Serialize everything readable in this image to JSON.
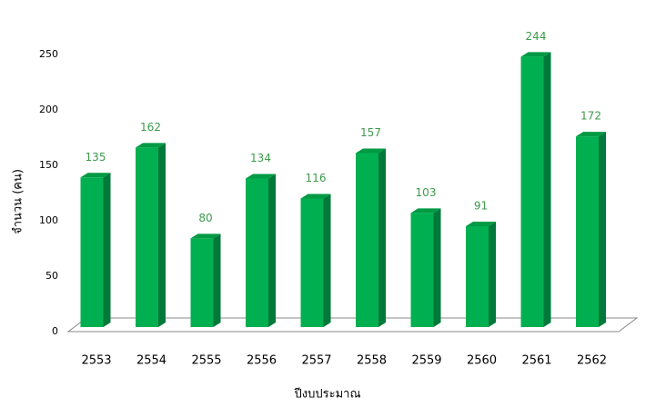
{
  "chart_data": {
    "type": "bar3d",
    "x_label": "ปีงบประมาณ",
    "y_label": "จำนวน (คน)",
    "categories": [
      "2553",
      "2554",
      "2555",
      "2556",
      "2557",
      "2558",
      "2559",
      "2560",
      "2561",
      "2562"
    ],
    "values": [
      135,
      162,
      80,
      134,
      116,
      157,
      103,
      91,
      244,
      172
    ],
    "color": "#00b050",
    "ylim": [
      0,
      250
    ],
    "yticks": [
      0,
      50,
      100,
      150,
      200,
      250
    ],
    "grid": false
  }
}
